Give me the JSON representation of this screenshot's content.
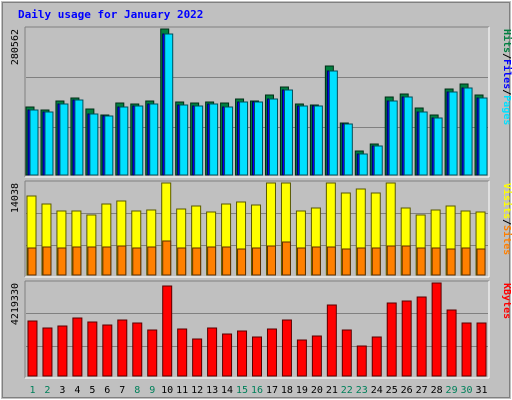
{
  "chart_data": {
    "type": "bar",
    "title": "Daily usage for January 2022",
    "categories": [
      "1",
      "2",
      "3",
      "4",
      "5",
      "6",
      "7",
      "8",
      "9",
      "10",
      "11",
      "12",
      "13",
      "14",
      "15",
      "16",
      "17",
      "18",
      "19",
      "20",
      "21",
      "22",
      "23",
      "24",
      "25",
      "26",
      "27",
      "28",
      "29",
      "30",
      "31"
    ],
    "weekend_days": [
      "1",
      "2",
      "8",
      "9",
      "15",
      "16",
      "22",
      "23",
      "29",
      "30"
    ],
    "panels": [
      {
        "id": "hits",
        "ymax_label": "280562",
        "ymax": 280562,
        "right_label": [
          {
            "text": "Hits",
            "color": "#008040"
          },
          {
            "text": "/",
            "color": "#000000"
          },
          {
            "text": "Files",
            "color": "#0000ff"
          },
          {
            "text": "/",
            "color": "#000000"
          },
          {
            "text": "Pages",
            "color": "#00e0ff"
          }
        ],
        "series": [
          {
            "name": "Hits",
            "color": "#008040",
            "values": [
              131000,
              124000,
              143000,
              148000,
              126000,
              116000,
              138000,
              137000,
              143000,
              280562,
              140000,
              138000,
              140000,
              138000,
              146000,
              142000,
              153000,
              170000,
              137000,
              134000,
              210000,
              100000,
              46000,
              60000,
              149000,
              155000,
              128000,
              115000,
              166000,
              175000,
              154000
            ]
          },
          {
            "name": "Files",
            "color": "#0000ff",
            "values": [
              124000,
              121000,
              137000,
              144000,
              118000,
              113000,
              130000,
              132000,
              136000,
              270000,
              135000,
              132000,
              137000,
              131000,
              141000,
              141000,
              146000,
              163000,
              132000,
              133000,
              200000,
              98000,
              40000,
              56000,
              142000,
              150000,
              122000,
              110000,
              160000,
              168000,
              148000
            ]
          },
          {
            "name": "Pages",
            "color": "#00e0ff",
            "values": [
              124000,
              121000,
              137000,
              144000,
              118000,
              113000,
              130000,
              132000,
              136000,
              270000,
              135000,
              132000,
              137000,
              131000,
              141000,
              141000,
              146000,
              163000,
              132000,
              133000,
              200000,
              98000,
              40000,
              56000,
              142000,
              150000,
              122000,
              110000,
              160000,
              168000,
              148000
            ]
          }
        ]
      },
      {
        "id": "visits",
        "ymax_label": "14038",
        "ymax": 14038,
        "right_label": [
          {
            "text": "Visits",
            "color": "#ffff00"
          },
          {
            "text": "/",
            "color": "#000000"
          },
          {
            "text": "Sites",
            "color": "#ff8000"
          }
        ],
        "series": [
          {
            "name": "Visits",
            "color": "#ffff00",
            "values": [
              12050,
              10800,
              9700,
              9800,
              9120,
              10840,
              11320,
              9740,
              9850,
              14038,
              10100,
              10500,
              9600,
              10800,
              11070,
              10670,
              14000,
              14038,
              9720,
              10260,
              14038,
              12500,
              13170,
              12570,
              14038,
              10150,
              9200,
              9850,
              10470,
              9800,
              9640
            ]
          },
          {
            "name": "Sites",
            "color": "#ff8000",
            "values": [
              4170,
              4200,
              4160,
              4300,
              4210,
              4250,
              4400,
              4130,
              4220,
              5200,
              4070,
              4130,
              4200,
              4300,
              3940,
              4140,
              4500,
              5000,
              4140,
              4290,
              4300,
              3990,
              4080,
              4130,
              4350,
              4350,
              4050,
              4160,
              3930,
              4090,
              3960
            ]
          }
        ]
      },
      {
        "id": "kbytes",
        "ymax_label": "4219330",
        "ymax": 4219330,
        "right_label": [
          {
            "text": "KBytes",
            "color": "#ff0000"
          }
        ],
        "series": [
          {
            "name": "KBytes",
            "color": "#ff0000",
            "values": [
              2500000,
              2200000,
              2250000,
              2650000,
              2430000,
              2300000,
              2550000,
              2400000,
              2100000,
              4100000,
              2150000,
              1700000,
              2200000,
              1900000,
              2050000,
              1750000,
              2150000,
              2550000,
              1650000,
              1800000,
              3200000,
              2070000,
              1350000,
              1750000,
              3300000,
              3400000,
              3600000,
              4219330,
              3000000,
              2400000,
              2400000
            ]
          }
        ]
      }
    ]
  }
}
